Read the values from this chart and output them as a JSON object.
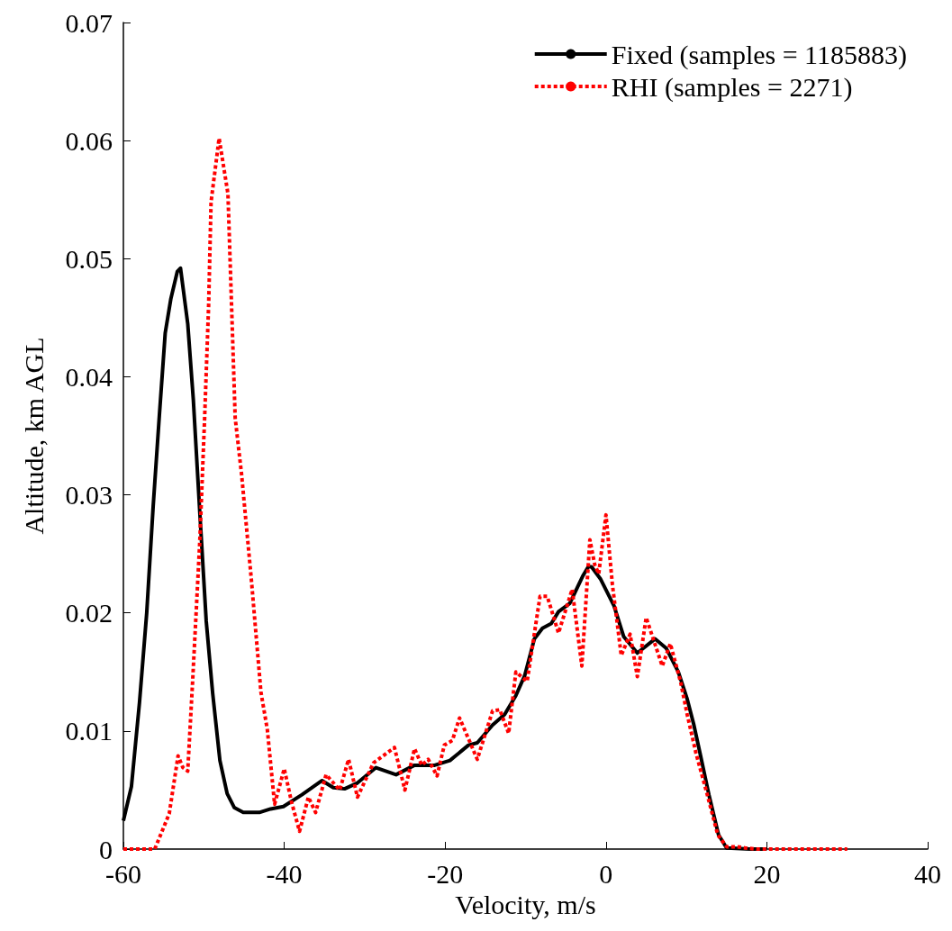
{
  "chart_data": {
    "type": "line",
    "xlabel": "Velocity, m/s",
    "ylabel": "Altitude, km AGL",
    "xlim": [
      -60,
      40
    ],
    "xticks": [
      -60,
      -40,
      -20,
      0,
      20,
      40
    ],
    "ylim": [
      0,
      0.07
    ],
    "yticks": [
      0,
      0.01,
      0.02,
      0.03,
      0.04,
      0.05,
      0.06,
      0.07
    ],
    "grid": false,
    "legend": "top right",
    "marker": "none",
    "series": [
      {
        "name": "Fixed (samples = 1185883)",
        "color": "#000000",
        "line_style": "solid",
        "x": [
          -60,
          -59,
          -58,
          -57.1,
          -56.3,
          -55.5,
          -54.8,
          -54.1,
          -53.3,
          -52.9,
          -52,
          -51.3,
          -50.5,
          -49.7,
          -48.9,
          -48,
          -47.1,
          -46.2,
          -45.1,
          -43.1,
          -41.7,
          -40.1,
          -37.8,
          -35.3,
          -33.9,
          -32.5,
          -30.9,
          -28.6,
          -26.1,
          -23.8,
          -21.3,
          -19.4,
          -17.1,
          -16,
          -14.1,
          -12.6,
          -11.2,
          -10.1,
          -8.9,
          -7.9,
          -6.8,
          -5.9,
          -4.5,
          -2.9,
          -2.2,
          -1.8,
          -0.7,
          1,
          2.2,
          3.9,
          6.1,
          7.5,
          9,
          10.1,
          10.9,
          11.7,
          12.8,
          14,
          15,
          17.9,
          20
        ],
        "values": [
          0.0024,
          0.0053,
          0.0124,
          0.02,
          0.029,
          0.037,
          0.0437,
          0.0466,
          0.0489,
          0.0492,
          0.0445,
          0.038,
          0.0285,
          0.0193,
          0.0132,
          0.0075,
          0.0047,
          0.0035,
          0.0031,
          0.0031,
          0.0034,
          0.0036,
          0.0046,
          0.0058,
          0.0052,
          0.0051,
          0.0056,
          0.0069,
          0.0063,
          0.0071,
          0.0071,
          0.0075,
          0.0088,
          0.009,
          0.0105,
          0.0114,
          0.013,
          0.0147,
          0.0178,
          0.0187,
          0.0191,
          0.0201,
          0.0208,
          0.0231,
          0.0239,
          0.0239,
          0.0229,
          0.0206,
          0.018,
          0.0166,
          0.0178,
          0.017,
          0.015,
          0.0127,
          0.0106,
          0.0081,
          0.0046,
          0.0012,
          0.0001,
          0,
          0
        ]
      },
      {
        "name": "RHI (samples = 2271)",
        "color": "#ff0000",
        "line_style": "dotted",
        "x": [
          -60,
          -56.1,
          -54.3,
          -53.2,
          -52.6,
          -52,
          -51.4,
          -50.5,
          -49.9,
          -49.4,
          -49.1,
          -48.1,
          -47,
          -46.1,
          -45.3,
          -44.1,
          -42.9,
          -42.1,
          -41.2,
          -40,
          -39.1,
          -38.1,
          -37,
          -36.1,
          -34.8,
          -33.1,
          -32,
          -30.9,
          -28.9,
          -26.3,
          -25,
          -23.8,
          -22.9,
          -22.1,
          -21,
          -20.1,
          -19.1,
          -18.2,
          -16,
          -14.1,
          -13.2,
          -12.1,
          -11.2,
          -9.8,
          -8.2,
          -7.3,
          -5.9,
          -4.2,
          -3,
          -2,
          -1.4,
          -0.9,
          0,
          0.8,
          1.9,
          3,
          3.9,
          5,
          7,
          8,
          9.3,
          10.1,
          11.2,
          12.6,
          13.9,
          15,
          16.3,
          17.3,
          18.7,
          30
        ],
        "values": [
          0,
          0,
          0.003,
          0.0079,
          0.0069,
          0.0066,
          0.0141,
          0.0261,
          0.0365,
          0.0461,
          0.0548,
          0.0602,
          0.0555,
          0.0365,
          0.0317,
          0.0229,
          0.0133,
          0.0101,
          0.0038,
          0.0068,
          0.004,
          0.0015,
          0.0044,
          0.0031,
          0.0063,
          0.005,
          0.0076,
          0.0044,
          0.0073,
          0.0086,
          0.005,
          0.0085,
          0.0071,
          0.0076,
          0.0062,
          0.0088,
          0.0092,
          0.0111,
          0.0076,
          0.0117,
          0.0118,
          0.0098,
          0.015,
          0.0142,
          0.0214,
          0.0214,
          0.0183,
          0.022,
          0.0155,
          0.0262,
          0.0241,
          0.0233,
          0.0283,
          0.0224,
          0.0164,
          0.0182,
          0.0146,
          0.0196,
          0.0155,
          0.0174,
          0.0141,
          0.0114,
          0.0081,
          0.0046,
          0.0012,
          0.0002,
          0.0002,
          0.0001,
          0,
          0
        ]
      }
    ]
  }
}
